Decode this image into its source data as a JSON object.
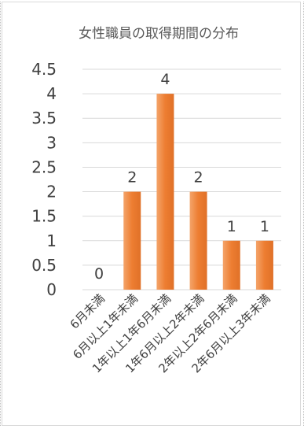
{
  "chart_data": {
    "type": "bar",
    "title": "女性職員の取得期間の分布",
    "categories": [
      "6月未満",
      "6月以上1年未満",
      "1年以上1年6月未満",
      "1年6月以上2年未満",
      "2年以上2年6月未満",
      "2年6月以上3年未満"
    ],
    "values": [
      0,
      2,
      4,
      2,
      1,
      1
    ],
    "data_labels": [
      "0",
      "2",
      "4",
      "2",
      "1",
      "1"
    ],
    "yticks": [
      "0",
      "0.5",
      "1",
      "1.5",
      "2",
      "2.5",
      "3",
      "3.5",
      "4",
      "4.5"
    ],
    "ylim": [
      0,
      4.5
    ],
    "grid": true,
    "legend": "none",
    "colors": {
      "bar": "#ED7D31",
      "bar_light": "#F4A46A",
      "grid": "#D9D9D9",
      "text": "#404040"
    }
  }
}
